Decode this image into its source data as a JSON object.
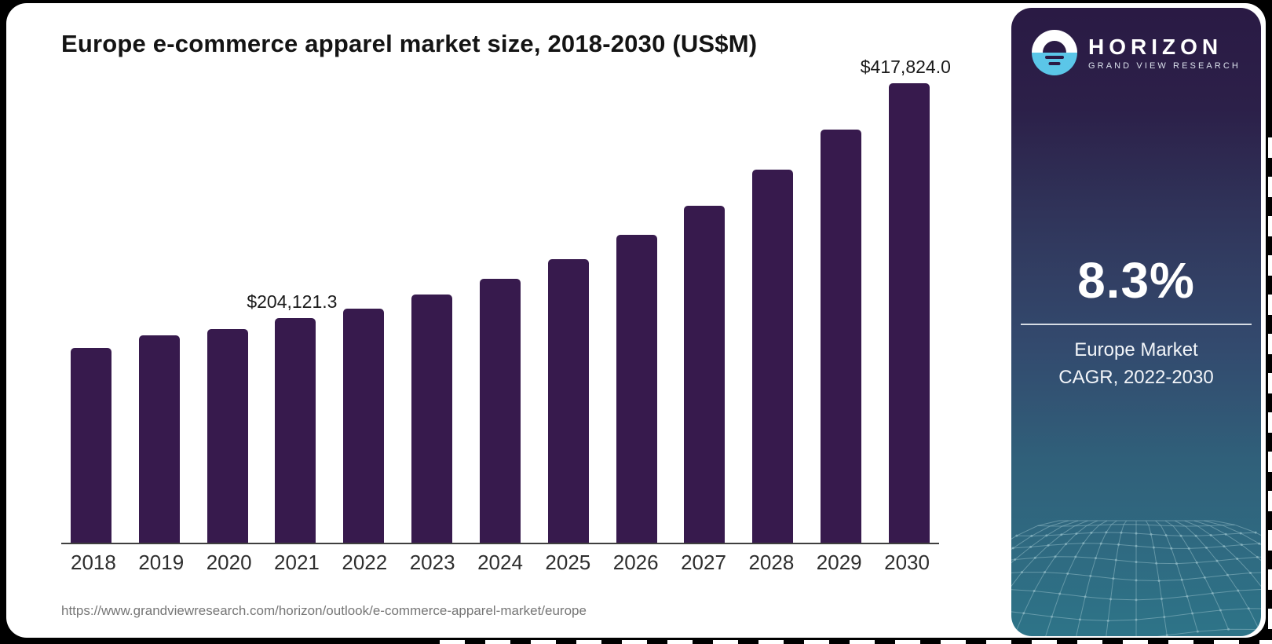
{
  "chart": {
    "title": "Europe e-commerce apparel market size, 2018-2030 (US$M)",
    "source_url": "https://www.grandviewresearch.com/horizon/outlook/e-commerce-apparel-market/europe",
    "bar_color": "#371a4d",
    "axis_color": "#3f3f3f"
  },
  "chart_data": {
    "type": "bar",
    "title": "Europe e-commerce apparel market size, 2018-2030 (US$M)",
    "unit": "US$M",
    "categories": [
      "2018",
      "2019",
      "2020",
      "2021",
      "2022",
      "2023",
      "2024",
      "2025",
      "2026",
      "2027",
      "2028",
      "2029",
      "2030"
    ],
    "values": [
      177100,
      188600,
      194300,
      204121.3,
      212900,
      225700,
      240000,
      257900,
      280000,
      306400,
      339300,
      375700,
      417824.0
    ],
    "data_labels": {
      "2021": "$204,121.3",
      "2030": "$417,824.0"
    },
    "ylim": [
      0,
      430000
    ],
    "grid": false,
    "legend": false,
    "note": "Only 2021 and 2030 carry printed data labels; other values estimated from bar heights"
  },
  "sidebar": {
    "logo": {
      "brand": "HORIZON",
      "subbrand": "GRAND VIEW RESEARCH"
    },
    "stat": {
      "value": "8.3%",
      "caption_line1": "Europe Market",
      "caption_line2": "CAGR, 2022-2030"
    },
    "colors": {
      "gradient_top": "#2a1a44",
      "gradient_mid": "#334a6e",
      "gradient_bottom": "#2e7488",
      "logo_blue": "#5bc6e8",
      "mesh_line": "#8fb9c4"
    }
  }
}
